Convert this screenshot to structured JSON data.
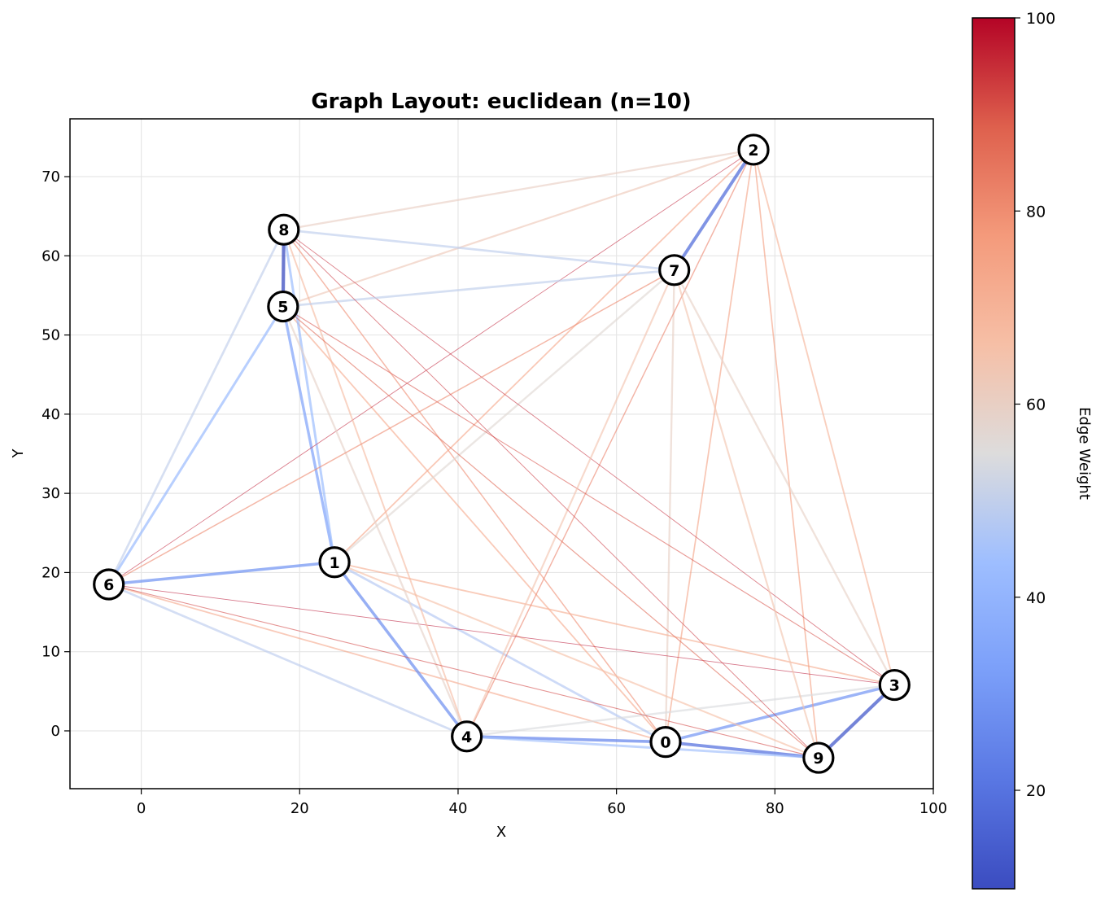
{
  "chart_data": {
    "type": "scatter",
    "subtype": "graph",
    "title": "Graph Layout: euclidean (n=10)",
    "xlabel": "X",
    "ylabel": "Y",
    "xlim": [
      -9,
      100
    ],
    "ylim": [
      -7.3,
      77.3
    ],
    "xticks": [
      0,
      20,
      40,
      60,
      80,
      100
    ],
    "yticks": [
      0,
      10,
      20,
      30,
      40,
      50,
      60,
      70
    ],
    "grid": true,
    "nodes": [
      {
        "id": "0",
        "x": 66.2,
        "y": -1.4
      },
      {
        "id": "1",
        "x": 24.4,
        "y": 21.3
      },
      {
        "id": "2",
        "x": 77.3,
        "y": 73.4
      },
      {
        "id": "3",
        "x": 95.1,
        "y": 5.8
      },
      {
        "id": "4",
        "x": 41.1,
        "y": -0.7
      },
      {
        "id": "5",
        "x": 17.9,
        "y": 53.6
      },
      {
        "id": "6",
        "x": -4.1,
        "y": 18.5
      },
      {
        "id": "7",
        "x": 67.3,
        "y": 58.2
      },
      {
        "id": "8",
        "x": 18.0,
        "y": 63.3
      },
      {
        "id": "9",
        "x": 85.5,
        "y": -3.4
      }
    ],
    "edges": [
      [
        "0",
        "1"
      ],
      [
        "0",
        "3"
      ],
      [
        "0",
        "4"
      ],
      [
        "0",
        "5"
      ],
      [
        "0",
        "6"
      ],
      [
        "0",
        "7"
      ],
      [
        "0",
        "8"
      ],
      [
        "0",
        "9"
      ],
      [
        "0",
        "2"
      ],
      [
        "1",
        "2"
      ],
      [
        "1",
        "3"
      ],
      [
        "1",
        "4"
      ],
      [
        "1",
        "5"
      ],
      [
        "1",
        "6"
      ],
      [
        "1",
        "7"
      ],
      [
        "1",
        "8"
      ],
      [
        "1",
        "9"
      ],
      [
        "2",
        "3"
      ],
      [
        "2",
        "4"
      ],
      [
        "2",
        "5"
      ],
      [
        "2",
        "6"
      ],
      [
        "2",
        "7"
      ],
      [
        "2",
        "8"
      ],
      [
        "2",
        "9"
      ],
      [
        "3",
        "4"
      ],
      [
        "3",
        "5"
      ],
      [
        "3",
        "6"
      ],
      [
        "3",
        "7"
      ],
      [
        "3",
        "8"
      ],
      [
        "3",
        "9"
      ],
      [
        "4",
        "5"
      ],
      [
        "4",
        "6"
      ],
      [
        "4",
        "7"
      ],
      [
        "4",
        "8"
      ],
      [
        "4",
        "9"
      ],
      [
        "5",
        "6"
      ],
      [
        "5",
        "7"
      ],
      [
        "5",
        "8"
      ],
      [
        "5",
        "9"
      ],
      [
        "6",
        "7"
      ],
      [
        "6",
        "8"
      ],
      [
        "6",
        "9"
      ],
      [
        "7",
        "8"
      ],
      [
        "7",
        "9"
      ],
      [
        "8",
        "9"
      ]
    ],
    "colorbar": {
      "label": "Edge Weight",
      "min": 9.8,
      "max": 100,
      "ticks": [
        20,
        40,
        60,
        80,
        100
      ],
      "colormap": "coolwarm"
    }
  }
}
